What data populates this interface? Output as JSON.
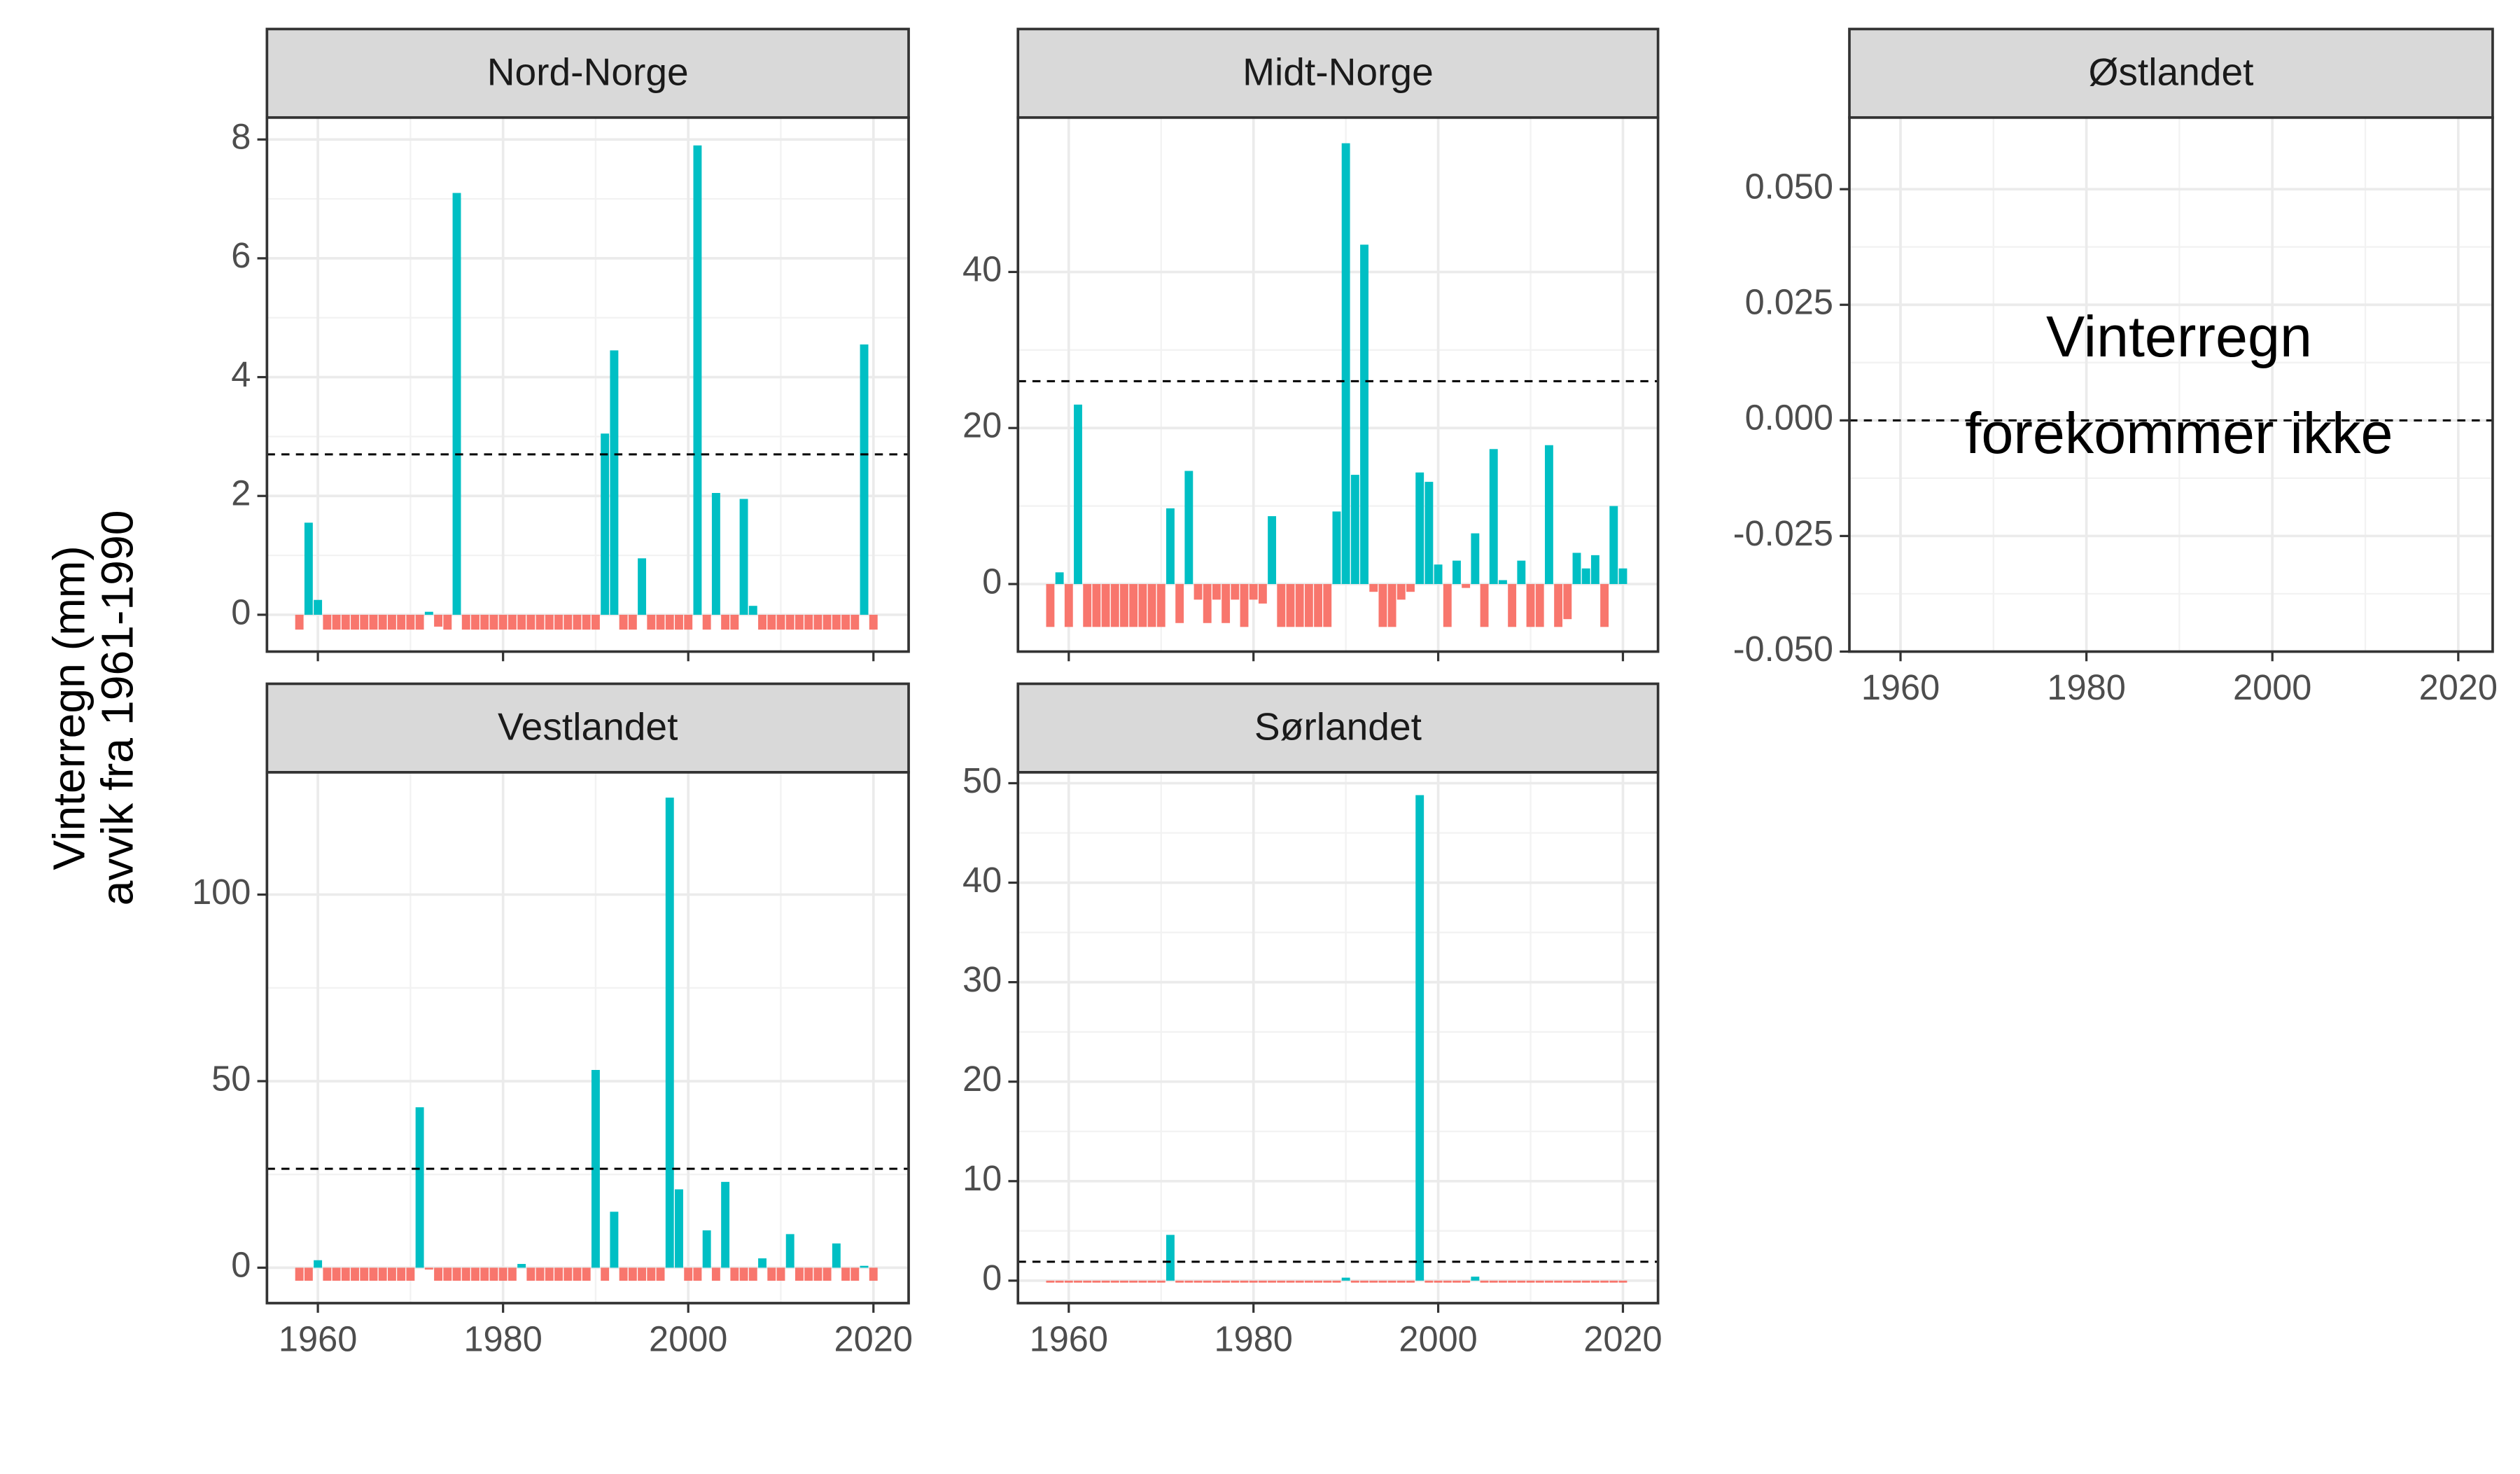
{
  "ylabel": [
    "Vinterregn (mm)",
    "avvik fra 1961-1990"
  ],
  "chart_data": [
    {
      "type": "bar",
      "title": "Nord-Norge",
      "pos_color": "#00BFC4",
      "neg_color": "#F8766D",
      "hline": 2.7,
      "show_xlabels": false,
      "xlim": [
        1954.5,
        2023.8
      ],
      "xticks": [
        1960,
        1980,
        2000,
        2020
      ],
      "ylim": [
        -0.62,
        8.37
      ],
      "yticks": [
        0,
        2,
        4,
        6,
        8
      ],
      "x": [
        1958,
        1959,
        1960,
        1961,
        1962,
        1963,
        1964,
        1965,
        1966,
        1967,
        1968,
        1969,
        1970,
        1971,
        1972,
        1973,
        1974,
        1975,
        1976,
        1977,
        1978,
        1979,
        1980,
        1981,
        1982,
        1983,
        1984,
        1985,
        1986,
        1987,
        1988,
        1989,
        1990,
        1991,
        1992,
        1993,
        1994,
        1995,
        1996,
        1997,
        1998,
        1999,
        2000,
        2001,
        2002,
        2003,
        2004,
        2005,
        2006,
        2007,
        2008,
        2009,
        2010,
        2011,
        2012,
        2013,
        2014,
        2015,
        2016,
        2017,
        2018,
        2019,
        2020
      ],
      "values": [
        -0.25,
        1.55,
        0.25,
        -0.25,
        -0.25,
        -0.25,
        -0.25,
        -0.25,
        -0.25,
        -0.25,
        -0.25,
        -0.25,
        -0.25,
        -0.25,
        0.05,
        -0.2,
        -0.25,
        7.1,
        -0.25,
        -0.25,
        -0.25,
        -0.25,
        -0.25,
        -0.25,
        -0.25,
        -0.25,
        -0.25,
        -0.25,
        -0.25,
        -0.25,
        -0.25,
        -0.25,
        -0.25,
        3.05,
        4.45,
        -0.25,
        -0.25,
        0.95,
        -0.25,
        -0.25,
        -0.25,
        -0.25,
        -0.25,
        7.9,
        -0.25,
        2.05,
        -0.25,
        -0.25,
        1.95,
        0.15,
        -0.25,
        -0.25,
        -0.25,
        -0.25,
        -0.25,
        -0.25,
        -0.25,
        -0.25,
        -0.25,
        -0.25,
        -0.25,
        4.55,
        -0.25
      ]
    },
    {
      "type": "bar",
      "title": "Midt-Norge",
      "pos_color": "#00BFC4",
      "neg_color": "#F8766D",
      "hline": 26,
      "show_xlabels": false,
      "xlim": [
        1954.5,
        2023.8
      ],
      "xticks": [
        1960,
        1980,
        2000,
        2020
      ],
      "ylim": [
        -8.66,
        59.8
      ],
      "yticks": [
        0,
        20,
        40
      ],
      "x": [
        1958,
        1959,
        1960,
        1961,
        1962,
        1963,
        1964,
        1965,
        1966,
        1967,
        1968,
        1969,
        1970,
        1971,
        1972,
        1973,
        1974,
        1975,
        1976,
        1977,
        1978,
        1979,
        1980,
        1981,
        1982,
        1983,
        1984,
        1985,
        1986,
        1987,
        1988,
        1989,
        1990,
        1991,
        1992,
        1993,
        1994,
        1995,
        1996,
        1997,
        1998,
        1999,
        2000,
        2001,
        2002,
        2003,
        2004,
        2005,
        2006,
        2007,
        2008,
        2009,
        2010,
        2011,
        2012,
        2013,
        2014,
        2015,
        2016,
        2017,
        2018,
        2019,
        2020
      ],
      "values": [
        -5.5,
        1.5,
        -5.5,
        23,
        -5.5,
        -5.5,
        -5.5,
        -5.5,
        -5.5,
        -5.5,
        -5.5,
        -5.5,
        -5.5,
        9.7,
        -5,
        14.5,
        -2,
        -5,
        -2,
        -5,
        -2,
        -5.5,
        -2,
        -2.5,
        8.7,
        -5.5,
        -5.5,
        -5.5,
        -5.5,
        -5.5,
        -5.5,
        9.3,
        56.5,
        14,
        43.5,
        -1,
        -5.5,
        -5.5,
        -2,
        -1,
        14.3,
        13.1,
        2.5,
        -5.5,
        3,
        -0.5,
        6.5,
        -5.5,
        17.3,
        0.5,
        -5.5,
        3,
        -5.5,
        -5.5,
        17.8,
        -5.5,
        -4.5,
        4,
        2,
        3.7,
        -5.5,
        10,
        2
      ]
    },
    {
      "type": "empty",
      "title": "Østlandet",
      "hline": 0,
      "show_xlabels": true,
      "annotation": [
        "Vinterregn",
        "forekommer ikke"
      ],
      "xlim": [
        1954.5,
        2023.7
      ],
      "xticks": [
        1960,
        1980,
        2000,
        2020
      ],
      "ylim": [
        -0.05,
        0.0655
      ],
      "yticks": [
        {
          "value": -0.05,
          "label": "-0.050"
        },
        {
          "value": -0.025,
          "label": "-0.025"
        },
        {
          "value": 0,
          "label": "0.000"
        },
        {
          "value": 0.025,
          "label": "0.025"
        },
        {
          "value": 0.05,
          "label": "0.050"
        }
      ]
    },
    {
      "type": "bar",
      "title": "Vestlandet",
      "pos_color": "#00BFC4",
      "neg_color": "#F8766D",
      "hline": 26.5,
      "show_xlabels": true,
      "xlim": [
        1954.5,
        2023.8
      ],
      "xticks": [
        1960,
        1980,
        2000,
        2020
      ],
      "ylim": [
        -9.5,
        132.8
      ],
      "yticks": [
        0,
        50,
        100
      ],
      "x": [
        1958,
        1959,
        1960,
        1961,
        1962,
        1963,
        1964,
        1965,
        1966,
        1967,
        1968,
        1969,
        1970,
        1971,
        1972,
        1973,
        1974,
        1975,
        1976,
        1977,
        1978,
        1979,
        1980,
        1981,
        1982,
        1983,
        1984,
        1985,
        1986,
        1987,
        1988,
        1989,
        1990,
        1991,
        1992,
        1993,
        1994,
        1995,
        1996,
        1997,
        1998,
        1999,
        2000,
        2001,
        2002,
        2003,
        2004,
        2005,
        2006,
        2007,
        2008,
        2009,
        2010,
        2011,
        2012,
        2013,
        2014,
        2015,
        2016,
        2017,
        2018,
        2019,
        2020
      ],
      "values": [
        -3.5,
        -3.5,
        2,
        -3.5,
        -3.5,
        -3.5,
        -3.5,
        -3.5,
        -3.5,
        -3.5,
        -3.5,
        -3.5,
        -3.5,
        43,
        -0.5,
        -3.5,
        -3.5,
        -3.5,
        -3.5,
        -3.5,
        -3.5,
        -3.5,
        -3.5,
        -3.5,
        1,
        -3.5,
        -3.5,
        -3.5,
        -3.5,
        -3.5,
        -3.5,
        -3.5,
        53,
        -3.5,
        15,
        -3.5,
        -3.5,
        -3.5,
        -3.5,
        -3.5,
        126,
        21,
        -3.5,
        -3.5,
        10,
        -3.5,
        23,
        -3.5,
        -3.5,
        -3.5,
        2.5,
        -3.5,
        -3.5,
        9,
        -3.5,
        -3.5,
        -3.5,
        -3.5,
        6.5,
        -3.5,
        -3.5,
        0.5,
        -3.5
      ]
    },
    {
      "type": "bar",
      "title": "Sørlandet",
      "pos_color": "#00BFC4",
      "neg_color": "#F8766D",
      "hline": 1.9,
      "show_xlabels": true,
      "xlim": [
        1954.5,
        2023.8
      ],
      "xticks": [
        1960,
        1980,
        2000,
        2020
      ],
      "ylim": [
        -2.26,
        51.1
      ],
      "yticks": [
        0,
        10,
        20,
        30,
        40,
        50
      ],
      "x": [
        1958,
        1959,
        1960,
        1961,
        1962,
        1963,
        1964,
        1965,
        1966,
        1967,
        1968,
        1969,
        1970,
        1971,
        1972,
        1973,
        1974,
        1975,
        1976,
        1977,
        1978,
        1979,
        1980,
        1981,
        1982,
        1983,
        1984,
        1985,
        1986,
        1987,
        1988,
        1989,
        1990,
        1991,
        1992,
        1993,
        1994,
        1995,
        1996,
        1997,
        1998,
        1999,
        2000,
        2001,
        2002,
        2003,
        2004,
        2005,
        2006,
        2007,
        2008,
        2009,
        2010,
        2011,
        2012,
        2013,
        2014,
        2015,
        2016,
        2017,
        2018,
        2019,
        2020
      ],
      "values": [
        -0.2,
        -0.2,
        -0.2,
        -0.2,
        -0.2,
        -0.2,
        -0.2,
        -0.2,
        -0.2,
        -0.2,
        -0.2,
        -0.2,
        -0.2,
        4.6,
        -0.2,
        -0.2,
        -0.2,
        -0.2,
        -0.2,
        -0.2,
        -0.2,
        -0.2,
        -0.2,
        -0.2,
        -0.2,
        -0.2,
        -0.2,
        -0.2,
        -0.2,
        -0.2,
        -0.2,
        -0.2,
        0.3,
        -0.2,
        -0.2,
        -0.2,
        -0.2,
        -0.2,
        -0.2,
        -0.2,
        48.8,
        -0.2,
        -0.2,
        -0.2,
        -0.2,
        -0.2,
        0.4,
        -0.2,
        -0.2,
        -0.2,
        -0.2,
        -0.2,
        -0.2,
        -0.2,
        -0.2,
        -0.2,
        -0.2,
        -0.2,
        -0.2,
        -0.2,
        -0.2,
        -0.2,
        -0.2
      ]
    }
  ]
}
